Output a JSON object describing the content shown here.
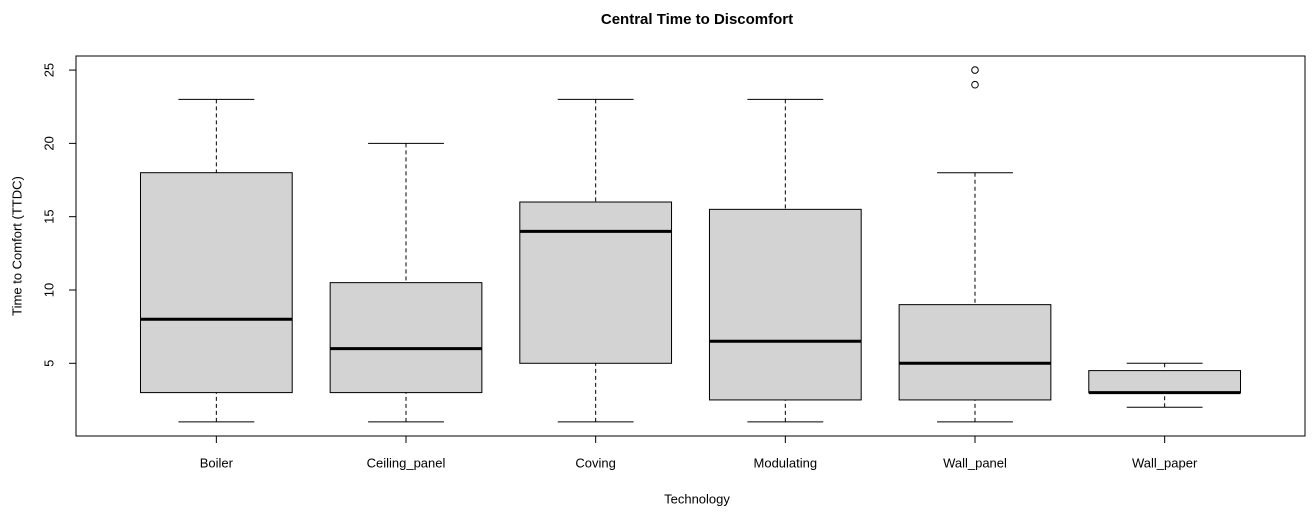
{
  "chart_data": {
    "type": "boxplot",
    "title": "Central Time to Discomfort",
    "xlabel": "Technology",
    "ylabel": "Time to Comfort (TTDC)",
    "categories": [
      "Boiler",
      "Ceiling_panel",
      "Coving",
      "Modulating",
      "Wall_panel",
      "Wall_paper"
    ],
    "boxes": [
      {
        "low": 1,
        "q1": 3,
        "median": 8,
        "q3": 18,
        "high": 23,
        "outliers": []
      },
      {
        "low": 1,
        "q1": 3,
        "median": 6,
        "q3": 10.5,
        "high": 20,
        "outliers": []
      },
      {
        "low": 1,
        "q1": 5,
        "median": 14,
        "q3": 16,
        "high": 23,
        "outliers": []
      },
      {
        "low": 1,
        "q1": 2.5,
        "median": 6.5,
        "q3": 15.5,
        "high": 23,
        "outliers": []
      },
      {
        "low": 1,
        "q1": 2.5,
        "median": 5,
        "q3": 9,
        "high": 18,
        "outliers": [
          24,
          25
        ]
      },
      {
        "low": 2,
        "q1": 3,
        "median": 3,
        "q3": 4.5,
        "high": 5,
        "outliers": []
      }
    ],
    "color": "#d3d3d3",
    "ylim": [
      0.04,
      25.96
    ],
    "yticks": [
      5,
      10,
      15,
      20,
      25
    ]
  }
}
